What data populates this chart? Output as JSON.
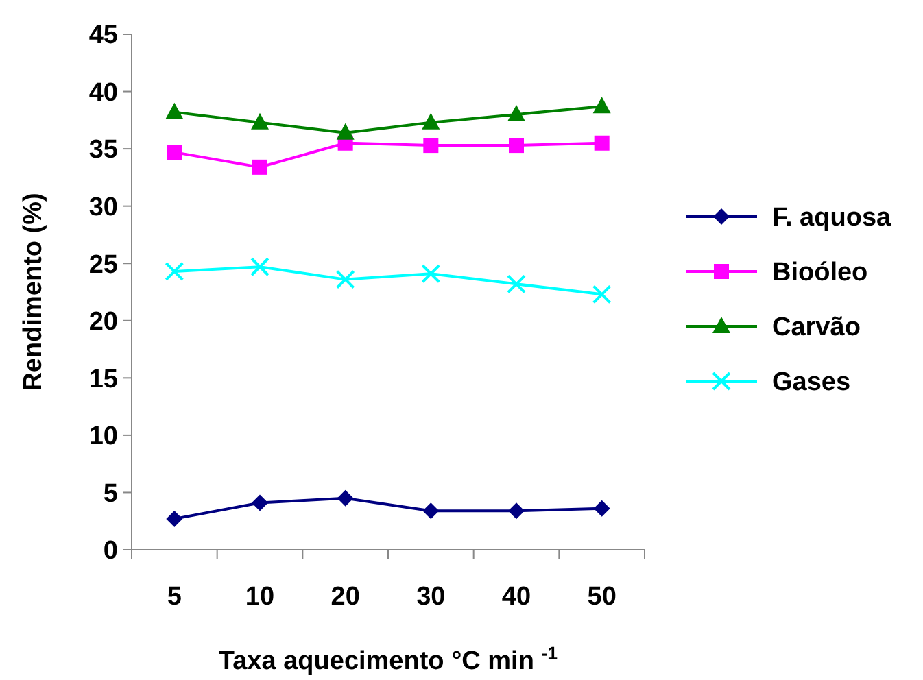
{
  "chart_data": {
    "type": "line",
    "xlabel": "Taxa aquecimento °C min $^{-1}$",
    "ylabel": "Rendimento (%)",
    "categories": [
      "5",
      "10",
      "20",
      "30",
      "40",
      "50"
    ],
    "ylim": [
      0,
      45
    ],
    "yticks": [
      0,
      5,
      10,
      15,
      20,
      25,
      30,
      35,
      40,
      45
    ],
    "grid": false,
    "legend": "right",
    "series": [
      {
        "name": "F. aquosa",
        "color": "#000080",
        "marker": "diamond",
        "values": [
          2.7,
          4.1,
          4.5,
          3.4,
          3.4,
          3.6
        ]
      },
      {
        "name": "Bioóleo",
        "color": "#ff00ff",
        "marker": "square",
        "values": [
          34.7,
          33.4,
          35.5,
          35.3,
          35.3,
          35.5
        ]
      },
      {
        "name": "Carvão",
        "color": "#008000",
        "marker": "triangle",
        "values": [
          38.2,
          37.3,
          36.4,
          37.3,
          38.0,
          38.7
        ]
      },
      {
        "name": "Gases",
        "color": "#00ffff",
        "marker": "cross",
        "values": [
          24.3,
          24.7,
          23.6,
          24.1,
          23.2,
          22.3
        ]
      }
    ]
  }
}
